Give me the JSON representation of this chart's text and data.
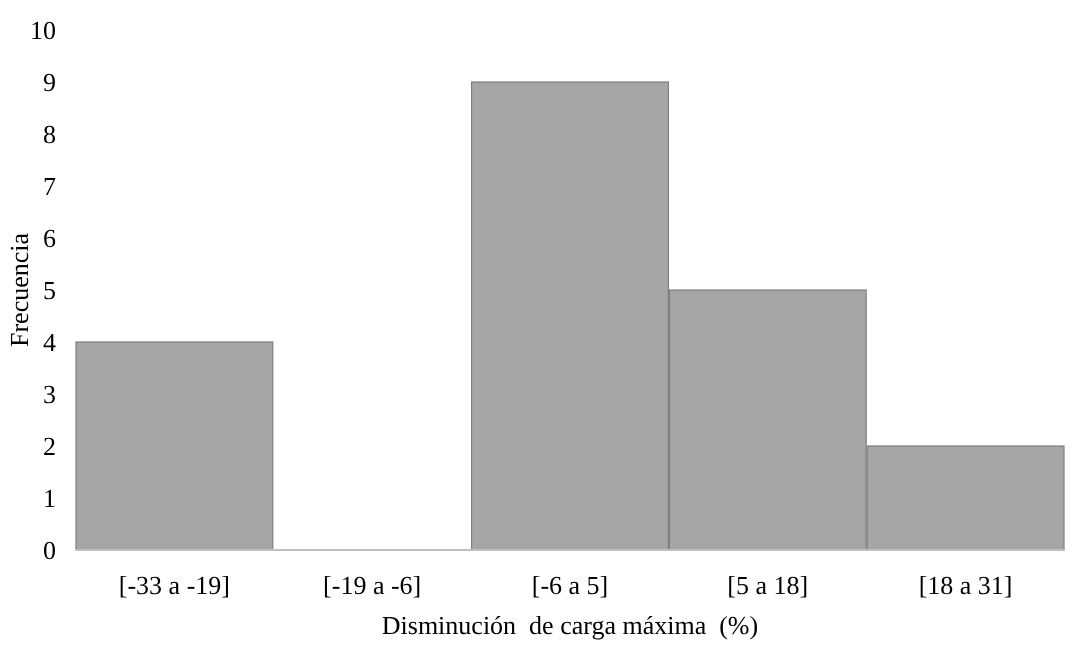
{
  "chart_data": {
    "type": "bar",
    "xlabel": "Disminución  de carga máxima  (%)",
    "ylabel": "Frecuencia",
    "categories": [
      "[-33 a -19]",
      "[-19 a -6]",
      "[-6 a 5]",
      "[5 a 18]",
      "[18 a 31]"
    ],
    "values": [
      4,
      0,
      9,
      5,
      2
    ],
    "color": "#a6a6a6",
    "ylim": [
      0,
      10
    ],
    "yticks": [
      0,
      1,
      2,
      3,
      4,
      5,
      6,
      7,
      8,
      9,
      10
    ],
    "grid": false
  }
}
